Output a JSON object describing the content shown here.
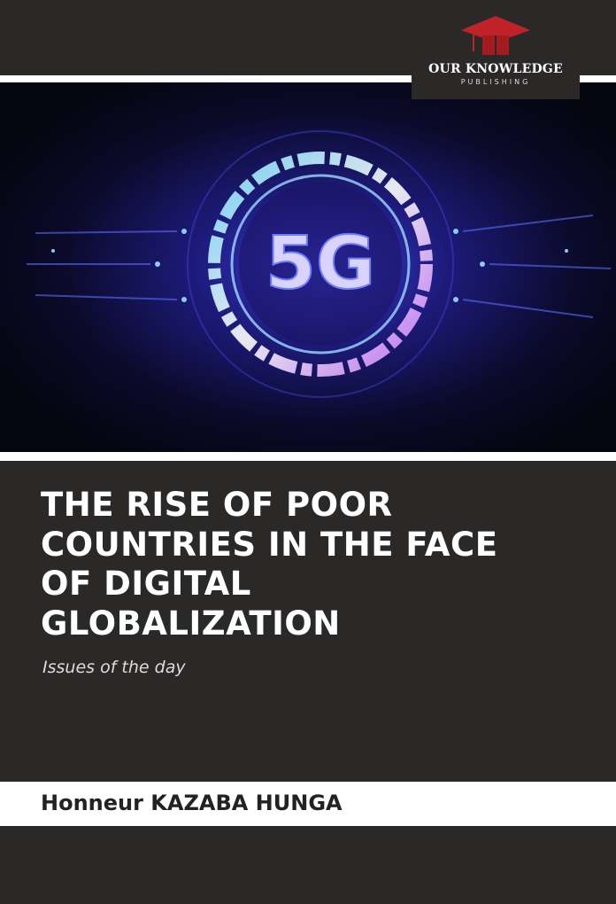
{
  "publisher": {
    "name": "OUR KNOWLEDGE",
    "subtitle": "PUBLISHING"
  },
  "cover_image": {
    "label": "5G"
  },
  "title_lines": [
    "THE RISE OF POOR",
    "COUNTRIES IN THE FACE",
    "OF DIGITAL",
    "GLOBALIZATION"
  ],
  "subtitle": "Issues of the day",
  "author": "Honneur KAZABA HUNGA"
}
